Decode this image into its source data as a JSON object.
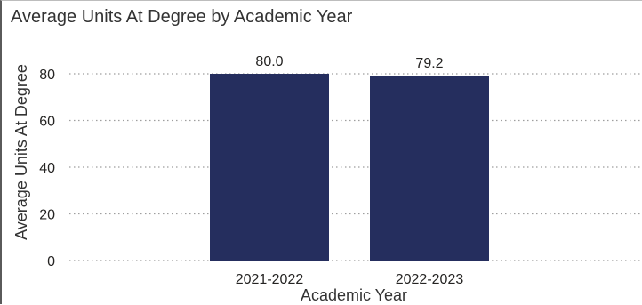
{
  "chart_data": {
    "type": "bar",
    "title": "Average Units At Degree by Academic Year",
    "xlabel": "Academic Year",
    "ylabel": "Average Units At Degree",
    "categories": [
      "2021-2022",
      "2022-2023"
    ],
    "values": [
      80.0,
      79.2
    ],
    "data_labels": [
      "80.0",
      "79.2"
    ],
    "y_ticks": [
      0,
      20,
      40,
      60,
      80
    ],
    "ylim": [
      0,
      80
    ],
    "grid": true,
    "legend": "none",
    "bar_color": "#252e5e",
    "grid_color": "#9e9e9e"
  }
}
